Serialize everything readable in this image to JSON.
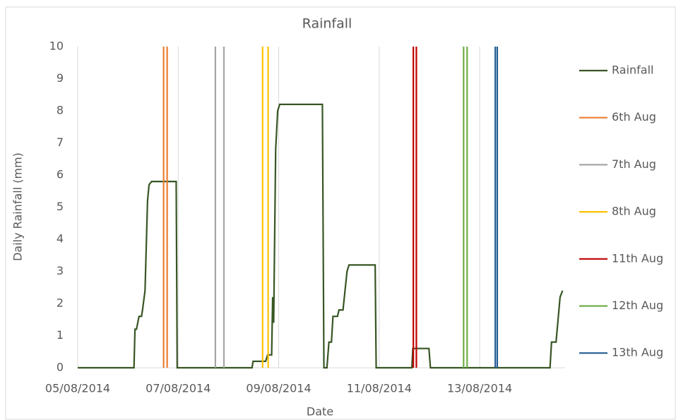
{
  "chart_data": {
    "type": "line",
    "title": "Rainfall",
    "xlabel": "Date",
    "ylabel": "Daily Rainfall (mm)",
    "xlim": [
      5,
      14.7
    ],
    "ylim": [
      0,
      10
    ],
    "xticks": [
      {
        "value": 5,
        "label": "05/08/2014"
      },
      {
        "value": 7,
        "label": "07/08/2014"
      },
      {
        "value": 9,
        "label": "09/08/2014"
      },
      {
        "value": 11,
        "label": "11/08/2014"
      },
      {
        "value": 13,
        "label": "13/08/2014"
      }
    ],
    "yticks": [
      0,
      1,
      2,
      3,
      4,
      5,
      6,
      7,
      8,
      9,
      10
    ],
    "grid": "x",
    "legend": "right",
    "series": [
      {
        "name": "Rainfall",
        "color": "#375623",
        "x": [
          5,
          6.12,
          6.14,
          6.17,
          6.22,
          6.27,
          6.29,
          6.34,
          6.39,
          6.42,
          6.47,
          6.96,
          6.98,
          8.47,
          8.49,
          8.74,
          8.78,
          8.86,
          8.88,
          8.9,
          8.94,
          8.98,
          9.02,
          9.87,
          9.9,
          9.96,
          10.0,
          10.05,
          10.08,
          10.17,
          10.2,
          10.28,
          10.36,
          10.4,
          10.92,
          10.94,
          11.65,
          11.67,
          11.99,
          12.02,
          14.4,
          14.43,
          14.52,
          14.6,
          14.65
        ],
        "values": [
          0,
          0,
          1.2,
          1.2,
          1.6,
          1.6,
          1.8,
          2.4,
          5.2,
          5.7,
          5.8,
          5.8,
          0,
          0,
          0.2,
          0.2,
          0.4,
          0.4,
          2.2,
          1.4,
          6.8,
          8.0,
          8.2,
          8.2,
          0,
          0,
          0.8,
          0.8,
          1.6,
          1.6,
          1.8,
          1.8,
          3.0,
          3.2,
          3.2,
          0,
          0,
          0.6,
          0.6,
          0,
          0,
          0.8,
          0.8,
          2.2,
          2.4
        ]
      },
      {
        "name": "6th Aug",
        "color": "#ed7d31",
        "x": [
          6.71,
          6.71,
          6.75,
          6.78,
          6.78
        ],
        "values": [
          0,
          10,
          null,
          0,
          10
        ]
      },
      {
        "name": "7th Aug",
        "color": "#a5a5a5",
        "x": [
          7.74,
          7.74,
          7.82,
          7.91,
          7.91
        ],
        "values": [
          0,
          10,
          null,
          0,
          10
        ]
      },
      {
        "name": "8th Aug",
        "color": "#ffc000",
        "x": [
          8.68,
          8.68,
          8.73,
          8.79,
          8.79
        ],
        "values": [
          0,
          10,
          null,
          0,
          10
        ]
      },
      {
        "name": "11th Aug",
        "color": "#c00000",
        "x": [
          11.68,
          11.68,
          11.71,
          11.74,
          11.74
        ],
        "values": [
          0,
          10,
          null,
          0,
          10
        ]
      },
      {
        "name": "12th Aug",
        "color": "#70ad47",
        "x": [
          12.68,
          12.68,
          12.71,
          12.75,
          12.75
        ],
        "values": [
          0,
          10,
          null,
          0,
          10
        ]
      },
      {
        "name": "13th Aug",
        "color": "#255e91",
        "x": [
          13.31,
          13.31,
          13.33,
          13.35,
          13.35
        ],
        "values": [
          0,
          10,
          null,
          0,
          10
        ]
      }
    ]
  }
}
